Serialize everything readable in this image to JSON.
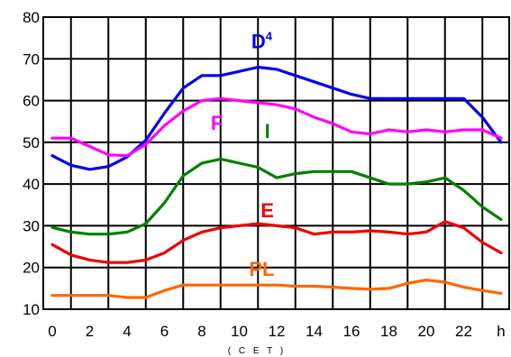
{
  "chart_data": {
    "type": "line",
    "title": "",
    "xlabel": "( C E T )",
    "ylabel": "",
    "x_unit_tick": "h",
    "xlim": [
      0,
      24
    ],
    "ylim": [
      10,
      80
    ],
    "x_ticks": [
      0,
      2,
      4,
      6,
      8,
      10,
      12,
      14,
      16,
      18,
      20,
      22
    ],
    "x_tick_labels": [
      "0",
      "2",
      "4",
      "6",
      "8",
      "10",
      "12",
      "14",
      "16",
      "18",
      "20",
      "22",
      "h"
    ],
    "y_ticks": [
      10,
      20,
      30,
      40,
      50,
      60,
      70,
      80
    ],
    "y_tick_labels": [
      "10",
      "20",
      "30",
      "40",
      "50",
      "60",
      "70",
      "80"
    ],
    "grid": true,
    "series": [
      {
        "name": "D",
        "name_sup": "4",
        "color": "#0000ee",
        "x": [
          0,
          1,
          2,
          3,
          4,
          5,
          6,
          7,
          8,
          9,
          10,
          11,
          12,
          13,
          14,
          15,
          16,
          17,
          18,
          19,
          20,
          21,
          22,
          23,
          24
        ],
        "y": [
          46.8,
          44.5,
          43.5,
          44.2,
          46.5,
          50.5,
          57,
          63,
          66,
          66,
          67,
          68,
          67.5,
          66,
          64.5,
          63,
          61.5,
          60.5,
          60.5,
          60.5,
          60.5,
          60.5,
          60.5,
          56,
          50
        ]
      },
      {
        "name": "F",
        "color": "#ff00ff",
        "x": [
          0,
          1,
          2,
          3,
          4,
          5,
          6,
          7,
          8,
          9,
          10,
          11,
          12,
          13,
          14,
          15,
          16,
          17,
          18,
          19,
          20,
          21,
          22,
          23,
          24
        ],
        "y": [
          51,
          51,
          49,
          47,
          46.8,
          49.5,
          54,
          57.5,
          60,
          60.5,
          60,
          59.5,
          59,
          58,
          56,
          54.5,
          52.5,
          52,
          53,
          52.5,
          53,
          52.5,
          53,
          53,
          51
        ]
      },
      {
        "name": "I",
        "color": "#008000",
        "x": [
          0,
          1,
          2,
          3,
          4,
          5,
          6,
          7,
          8,
          9,
          10,
          11,
          12,
          13,
          14,
          15,
          16,
          17,
          18,
          19,
          20,
          21,
          22,
          23,
          24
        ],
        "y": [
          29.6,
          28.5,
          28,
          28,
          28.5,
          30.5,
          35.5,
          42,
          45,
          46,
          45,
          44,
          41.5,
          42.5,
          43,
          43,
          43,
          41.5,
          40,
          40,
          40.5,
          41.5,
          38.5,
          34.5,
          31.5
        ]
      },
      {
        "name": "E",
        "color": "#ee0000",
        "x": [
          0,
          1,
          2,
          3,
          4,
          5,
          6,
          7,
          8,
          9,
          10,
          11,
          12,
          13,
          14,
          15,
          16,
          17,
          18,
          19,
          20,
          21,
          22,
          23,
          24
        ],
        "y": [
          25.5,
          23,
          21.8,
          21.2,
          21.2,
          21.8,
          23.5,
          26.5,
          28.5,
          29.5,
          30,
          30.5,
          30,
          29.5,
          28,
          28.5,
          28.5,
          28.8,
          28.5,
          28,
          28.5,
          31,
          29.5,
          26,
          23.5
        ]
      },
      {
        "name": "PL",
        "color": "#ff6600",
        "x": [
          0,
          1,
          2,
          3,
          4,
          5,
          6,
          7,
          8,
          9,
          10,
          11,
          12,
          13,
          14,
          15,
          16,
          17,
          18,
          19,
          20,
          21,
          22,
          23,
          24
        ],
        "y": [
          13.3,
          13.3,
          13.3,
          13.3,
          12.8,
          12.8,
          14.5,
          15.8,
          15.8,
          15.8,
          15.8,
          15.8,
          15.8,
          15.5,
          15.5,
          15.3,
          15,
          14.8,
          15,
          16.2,
          17,
          16.5,
          15.3,
          14.5,
          13.8
        ]
      }
    ]
  }
}
